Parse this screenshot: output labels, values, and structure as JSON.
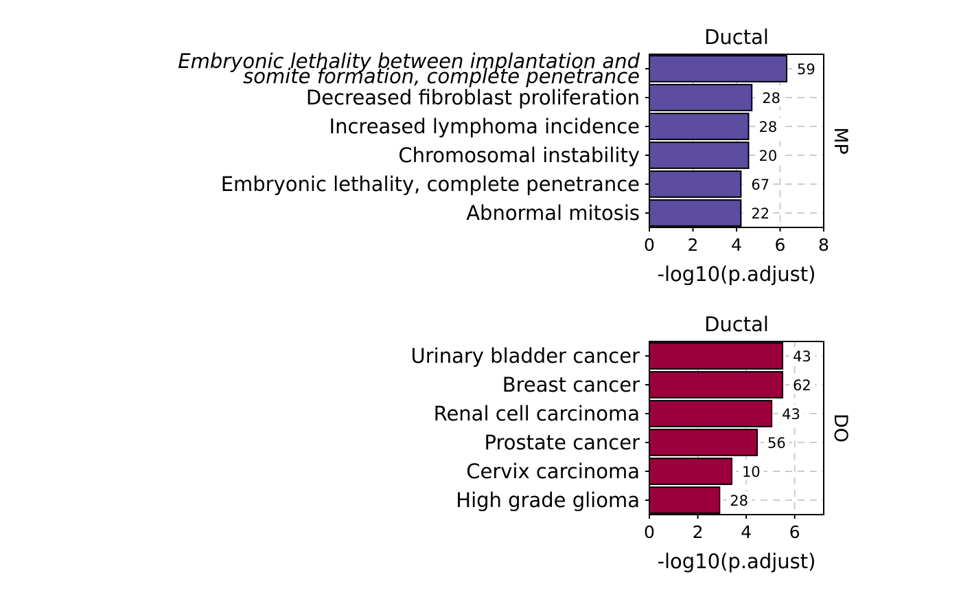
{
  "chart_data": [
    {
      "type": "bar",
      "orientation": "horizontal",
      "title": "Ductal",
      "facet_label": "MP",
      "xlabel": "-log10(p.adjust)",
      "xlim": [
        0,
        8
      ],
      "xticks": [
        0,
        2,
        4,
        6,
        8
      ],
      "color": "#5c4da0",
      "categories": [
        "Embryonic lethality between implantation and somite formation, complete penetrance",
        "Decreased fibroblast proliferation",
        "Increased lymphoma incidence",
        "Chromosomal instability",
        "Embryonic lethality, complete penetrance",
        "Abnormal mitosis"
      ],
      "category_lines": [
        [
          "Embryonic lethality between implantation and",
          "somite formation, complete penetrance"
        ],
        [
          "Decreased fibroblast proliferation"
        ],
        [
          "Increased lymphoma incidence"
        ],
        [
          "Chromosomal instability"
        ],
        [
          "Embryonic lethality, complete penetrance"
        ],
        [
          "Abnormal mitosis"
        ]
      ],
      "italic_first": true,
      "values": [
        6.3,
        4.7,
        4.55,
        4.55,
        4.2,
        4.2
      ],
      "counts": [
        "59",
        "28",
        "28",
        "20",
        "67",
        "22"
      ]
    },
    {
      "type": "bar",
      "orientation": "horizontal",
      "title": "Ductal",
      "facet_label": "DO",
      "xlabel": "-log10(p.adjust)",
      "xlim": [
        0,
        7.2
      ],
      "xticks": [
        0,
        2,
        4,
        6
      ],
      "color": "#9b003c",
      "categories": [
        "Urinary bladder cancer",
        "Breast cancer",
        "Renal cell carcinoma",
        "Prostate cancer",
        "Cervix carcinoma",
        "High grade glioma"
      ],
      "category_lines": [
        [
          "Urinary bladder cancer"
        ],
        [
          "Breast cancer"
        ],
        [
          "Renal cell carcinoma"
        ],
        [
          "Prostate cancer"
        ],
        [
          "Cervix carcinoma"
        ],
        [
          "High grade glioma"
        ]
      ],
      "italic_first": false,
      "values": [
        5.5,
        5.5,
        5.05,
        4.45,
        3.4,
        2.9
      ],
      "counts": [
        "43",
        "62",
        "43",
        "56",
        "10",
        "28"
      ]
    }
  ]
}
